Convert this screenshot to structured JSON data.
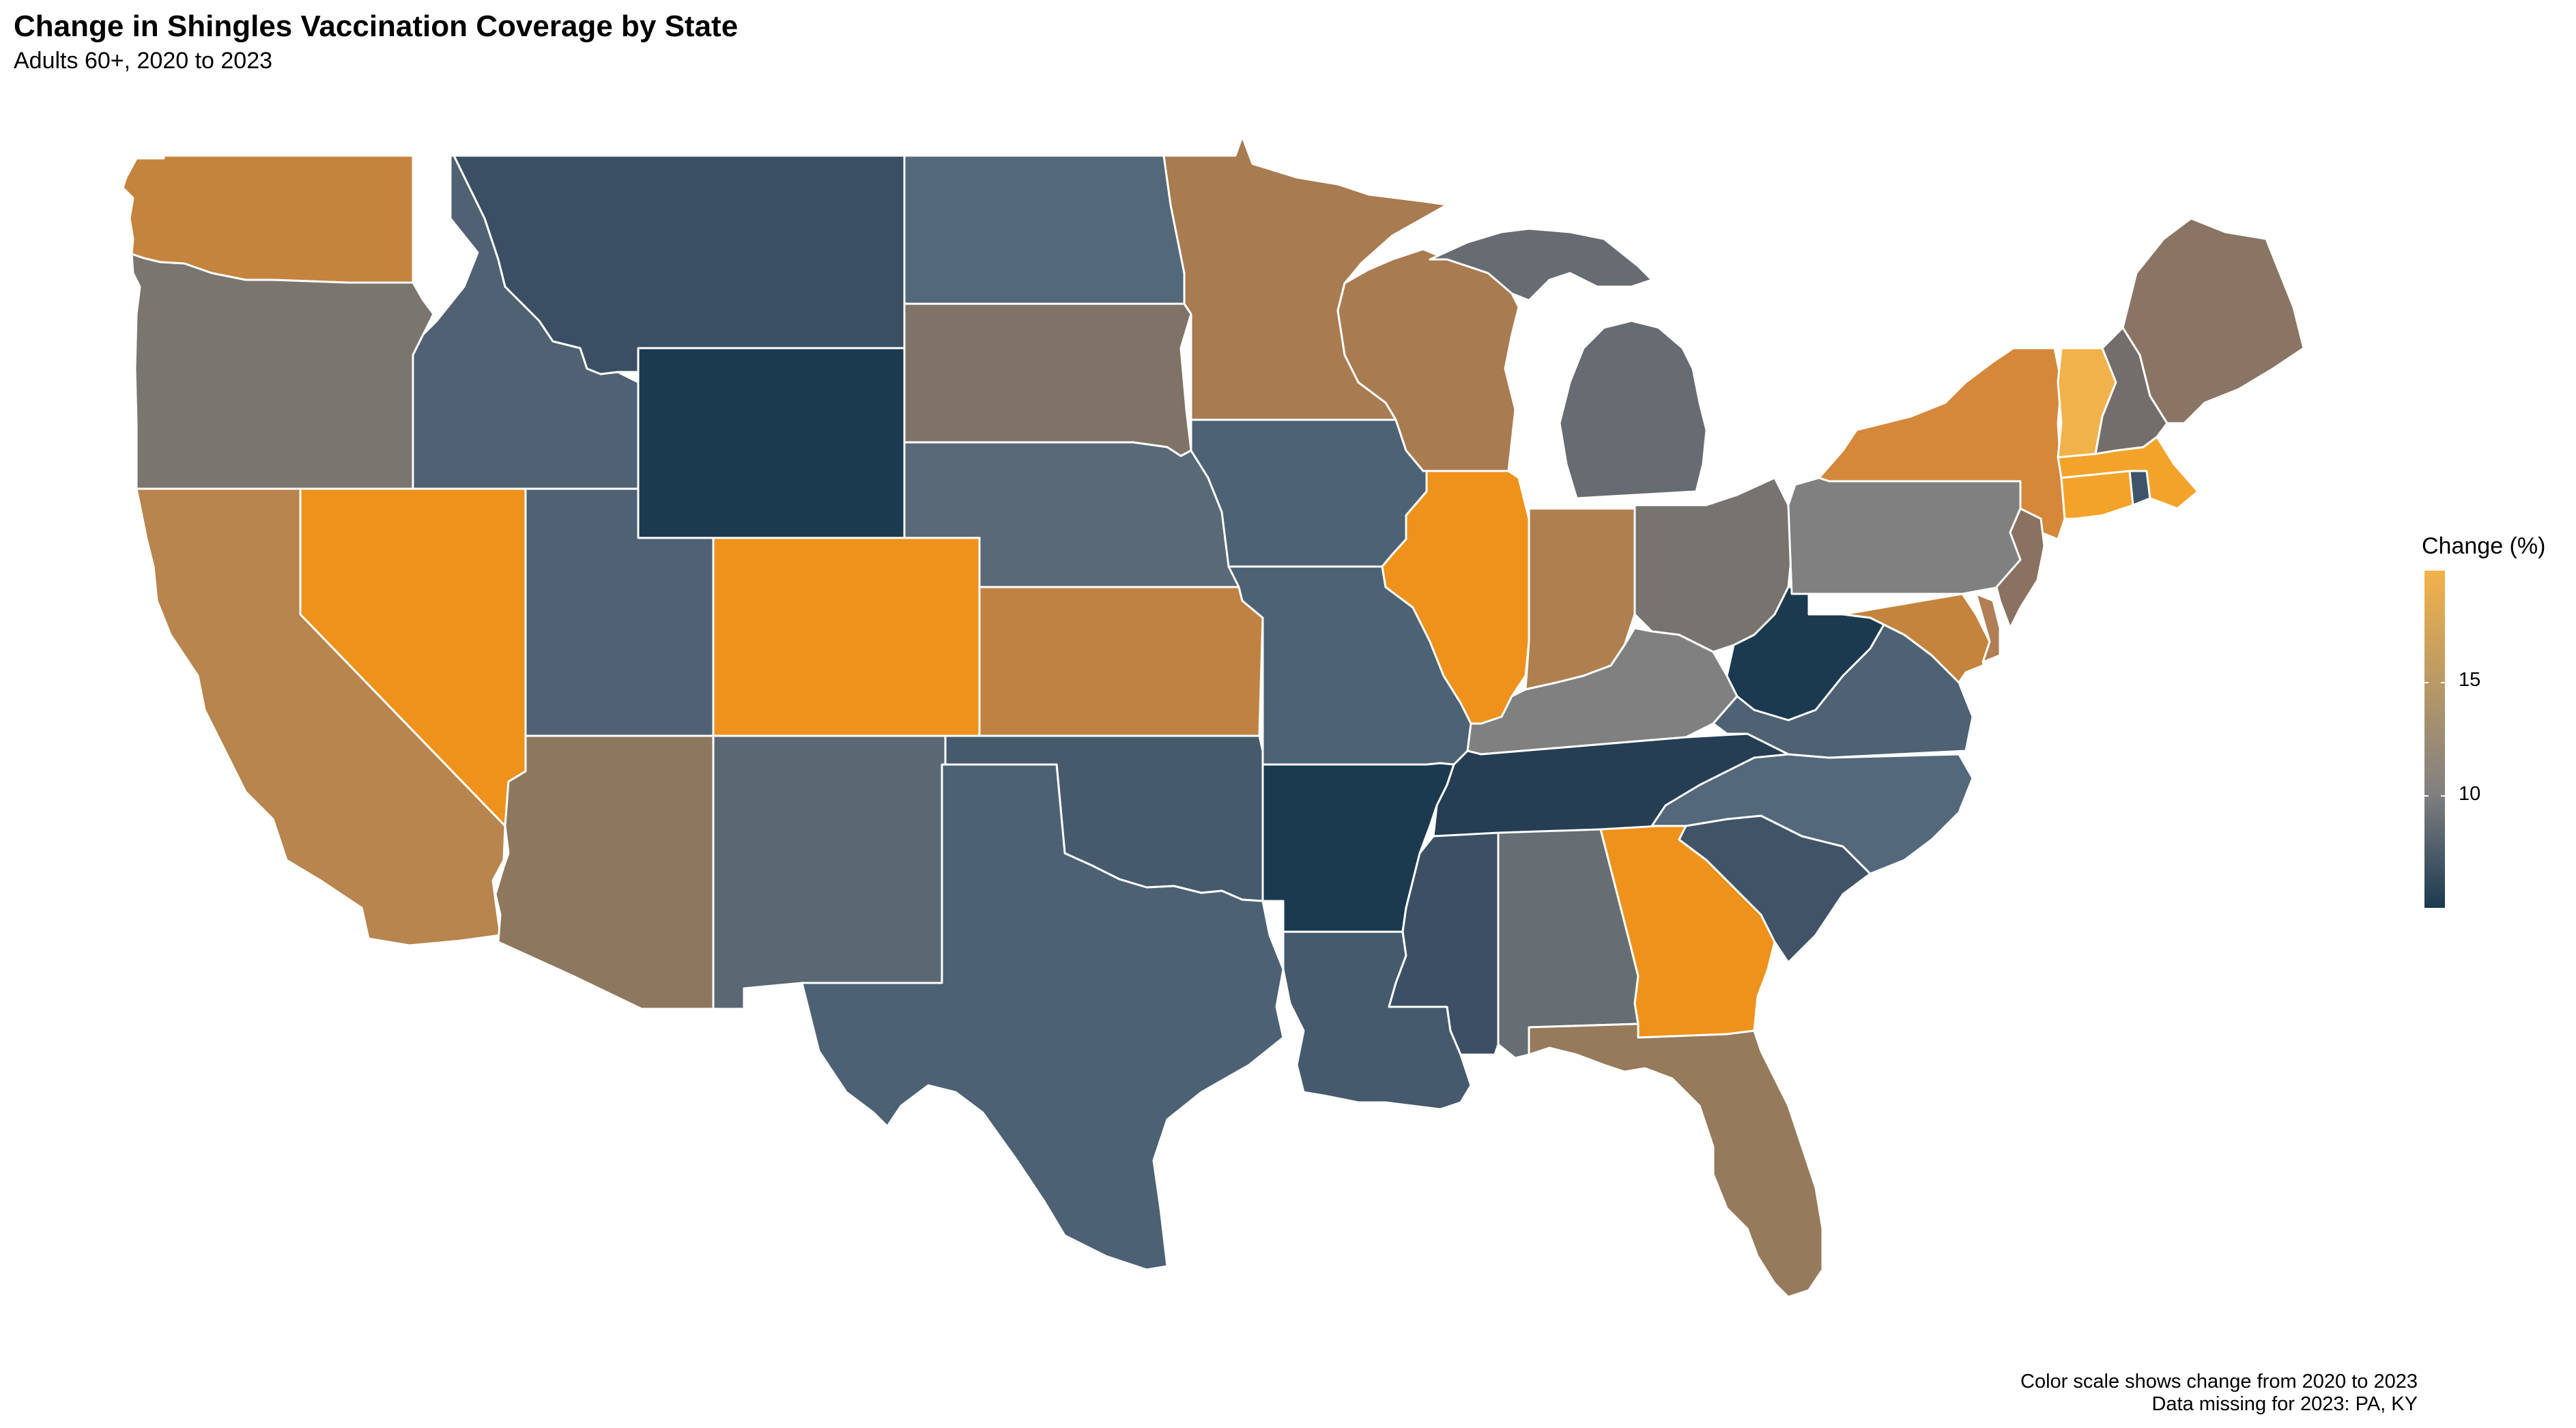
{
  "title": "Change in Shingles Vaccination Coverage by State",
  "subtitle": "Adults 60+, 2020 to 2023",
  "legend": {
    "title": "Change (%)",
    "ticks": [
      "10",
      "15"
    ],
    "low_color": "#1b3a50",
    "mid_color": "#808080",
    "high_color": "#f2b24a"
  },
  "caption": [
    "Color scale shows change from 2020 to 2023",
    "Data missing for 2023: PA, KY"
  ],
  "states": [
    {
      "code": "WA",
      "color": "#c4843e"
    },
    {
      "code": "OR",
      "color": "#7b756f"
    },
    {
      "code": "CA",
      "color": "#b7854d"
    },
    {
      "code": "NV",
      "color": "#ee921c"
    },
    {
      "code": "ID",
      "color": "#4f6173"
    },
    {
      "code": "MT",
      "color": "#3a4f64"
    },
    {
      "code": "WY",
      "color": "#1b3a50"
    },
    {
      "code": "UT",
      "color": "#4f6173"
    },
    {
      "code": "AZ",
      "color": "#8d785f"
    },
    {
      "code": "CO",
      "color": "#ee921c"
    },
    {
      "code": "NM",
      "color": "#5b6874"
    },
    {
      "code": "ND",
      "color": "#536879"
    },
    {
      "code": "SD",
      "color": "#7e7366"
    },
    {
      "code": "NE",
      "color": "#596978"
    },
    {
      "code": "KS",
      "color": "#c08243"
    },
    {
      "code": "OK",
      "color": "#455a6d"
    },
    {
      "code": "TX",
      "color": "#4c6274"
    },
    {
      "code": "MN",
      "color": "#a97b50"
    },
    {
      "code": "IA",
      "color": "#4d6274"
    },
    {
      "code": "MO",
      "color": "#4d6274"
    },
    {
      "code": "AR",
      "color": "#1b3a50"
    },
    {
      "code": "LA",
      "color": "#455a6d"
    },
    {
      "code": "WI",
      "color": "#a97b50"
    },
    {
      "code": "IL",
      "color": "#ee921c"
    },
    {
      "code": "MI",
      "color": "#676c72"
    },
    {
      "code": "IN",
      "color": "#b07f50"
    },
    {
      "code": "OH",
      "color": "#77736e"
    },
    {
      "code": "KY",
      "color": "#808080"
    },
    {
      "code": "TN",
      "color": "#263e54"
    },
    {
      "code": "MS",
      "color": "#3c4f64"
    },
    {
      "code": "AL",
      "color": "#666e74"
    },
    {
      "code": "GA",
      "color": "#ee921c"
    },
    {
      "code": "FL",
      "color": "#957a5b"
    },
    {
      "code": "SC",
      "color": "#415467"
    },
    {
      "code": "NC",
      "color": "#53687a"
    },
    {
      "code": "VA",
      "color": "#4e6274"
    },
    {
      "code": "WV",
      "color": "#1b3a50"
    },
    {
      "code": "PA",
      "color": "#808080"
    },
    {
      "code": "NY",
      "color": "#d5873a"
    },
    {
      "code": "NJ",
      "color": "#8a7160"
    },
    {
      "code": "MD",
      "color": "#c4843e"
    },
    {
      "code": "DE",
      "color": "#b27e55"
    },
    {
      "code": "CT",
      "color": "#f3a32a"
    },
    {
      "code": "RI",
      "color": "#3e546a"
    },
    {
      "code": "MA",
      "color": "#f3a32a"
    },
    {
      "code": "VT",
      "color": "#f2b24a"
    },
    {
      "code": "NH",
      "color": "#736e69"
    },
    {
      "code": "ME",
      "color": "#8a7564"
    }
  ]
}
